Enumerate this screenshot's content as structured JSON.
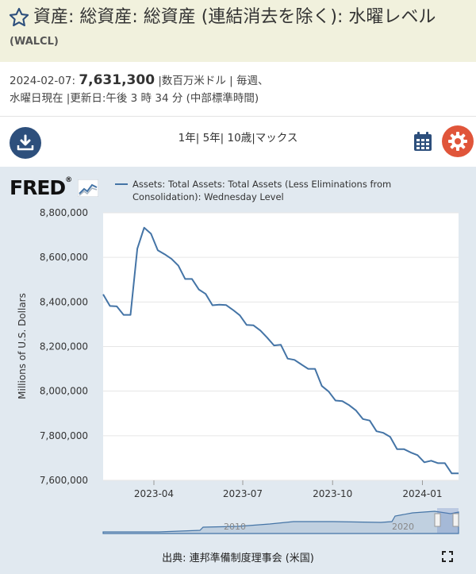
{
  "header": {
    "title": "資産: 総資産: 総資産 (連結消去を除く): 水曜レベル",
    "series_id": "(WALCL)",
    "star_icon": "star-outline-icon"
  },
  "meta": {
    "date": "2024-02-07:",
    "value": "7,631,300",
    "line1_rest": "|数百万米ドル | 毎週、",
    "line2": "水曜日現在 |更新日:午後 3 時 34 分 (中部標準時間)"
  },
  "toolbar": {
    "range_1y": "1年",
    "range_5y": "5年",
    "range_10y": "10歳",
    "range_max": "マックス",
    "sep": "|",
    "download_icon": "download-icon",
    "calendar_icon": "calendar-icon",
    "settings_icon": "gear-icon"
  },
  "chart_data": {
    "type": "line",
    "title": "",
    "ylabel": "Millions of U.S. Dollars",
    "xlabel": "",
    "ylim": [
      7600000,
      8800000
    ],
    "yticks": [
      7600000,
      7800000,
      8000000,
      8200000,
      8400000,
      8600000,
      8800000
    ],
    "ytick_labels": [
      "7,600,000",
      "7,800,000",
      "8,000,000",
      "8,200,000",
      "8,400,000",
      "8,600,000",
      "8,800,000"
    ],
    "xtick_labels": [
      "2023-04",
      "2023-07",
      "2023-10",
      "2024-01"
    ],
    "xticks": [
      "2023-04-01",
      "2023-07-01",
      "2023-10-01",
      "2024-01-01"
    ],
    "xlim": [
      "2023-02-08",
      "2024-02-07"
    ],
    "series": [
      {
        "name": "Assets: Total Assets: Total Assets (Less Eliminations from Consolidation): Wednesday Level",
        "color": "#4474a6",
        "x": [
          "2023-02-08",
          "2023-02-15",
          "2023-02-22",
          "2023-03-01",
          "2023-03-08",
          "2023-03-15",
          "2023-03-22",
          "2023-03-29",
          "2023-04-05",
          "2023-04-12",
          "2023-04-19",
          "2023-04-26",
          "2023-05-03",
          "2023-05-10",
          "2023-05-17",
          "2023-05-24",
          "2023-05-31",
          "2023-06-07",
          "2023-06-14",
          "2023-06-21",
          "2023-06-28",
          "2023-07-05",
          "2023-07-12",
          "2023-07-19",
          "2023-07-26",
          "2023-08-02",
          "2023-08-09",
          "2023-08-16",
          "2023-08-23",
          "2023-08-30",
          "2023-09-06",
          "2023-09-13",
          "2023-09-20",
          "2023-09-27",
          "2023-10-04",
          "2023-10-11",
          "2023-10-18",
          "2023-10-25",
          "2023-11-01",
          "2023-11-08",
          "2023-11-15",
          "2023-11-22",
          "2023-11-29",
          "2023-12-06",
          "2023-12-13",
          "2023-12-20",
          "2023-12-27",
          "2024-01-03",
          "2024-01-10",
          "2024-01-17",
          "2024-01-24",
          "2024-01-31",
          "2024-02-07"
        ],
        "values": [
          8434000,
          8382000,
          8380000,
          8342000,
          8342000,
          8639000,
          8733000,
          8706000,
          8632000,
          8614000,
          8593000,
          8563000,
          8503000,
          8503000,
          8456000,
          8436000,
          8385000,
          8388000,
          8386000,
          8364000,
          8340000,
          8297000,
          8295000,
          8272000,
          8240000,
          8205000,
          8208000,
          8146000,
          8140000,
          8120000,
          8100000,
          8100000,
          8023000,
          7998000,
          7958000,
          7955000,
          7937000,
          7913000,
          7875000,
          7868000,
          7820000,
          7813000,
          7795000,
          7740000,
          7740000,
          7725000,
          7713000,
          7681000,
          7688000,
          7677000,
          7677000,
          7631000,
          7631300
        ]
      }
    ]
  },
  "navigator": {
    "label_left": "2010",
    "label_right": "2020"
  },
  "footer": {
    "source": "出典: 連邦準備制度理事会 (米国)",
    "fullscreen_icon": "fullscreen-icon"
  },
  "brand": {
    "logo_text": "FRED",
    "logo_reg": "®"
  },
  "colors": {
    "header_bg": "#f1f1dd",
    "chart_bg": "#e1e9f0",
    "line": "#4474a6",
    "download_btn": "#2d4f7c",
    "settings_btn": "#e0553a"
  }
}
